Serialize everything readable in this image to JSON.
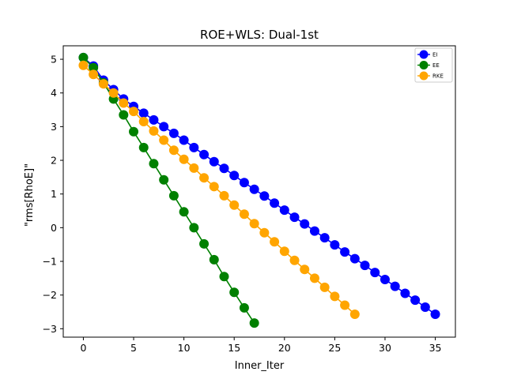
{
  "chart_data": {
    "type": "line",
    "title": "ROE+WLS: Dual-1st",
    "xlabel": "Inner_Iter",
    "ylabel": "\"rms[RhoE]\"",
    "xlim": [
      -2,
      37
    ],
    "ylim": [
      -3.25,
      5.4
    ],
    "xticks": [
      0,
      5,
      10,
      15,
      20,
      25,
      30,
      35
    ],
    "yticks": [
      -3,
      -2,
      -1,
      0,
      1,
      2,
      3,
      4,
      5
    ],
    "ytick_labels": [
      "−3",
      "−2",
      "−1",
      "0",
      "1",
      "2",
      "3",
      "4",
      "5"
    ],
    "grid": false,
    "legend_position": "top-right",
    "series": [
      {
        "name": "EI",
        "color": "#0000ff",
        "x": [
          0,
          1,
          2,
          3,
          4,
          5,
          6,
          7,
          8,
          9,
          10,
          11,
          12,
          13,
          14,
          15,
          16,
          17,
          18,
          19,
          20,
          21,
          22,
          23,
          24,
          25,
          26,
          27,
          28,
          29,
          30,
          31,
          32,
          33,
          34,
          35
        ],
        "y": [
          5.05,
          4.8,
          4.38,
          4.1,
          3.82,
          3.6,
          3.4,
          3.2,
          3.0,
          2.8,
          2.6,
          2.38,
          2.17,
          1.96,
          1.76,
          1.55,
          1.34,
          1.14,
          0.94,
          0.73,
          0.52,
          0.31,
          0.11,
          -0.1,
          -0.3,
          -0.51,
          -0.72,
          -0.92,
          -1.12,
          -1.33,
          -1.54,
          -1.74,
          -1.95,
          -2.15,
          -2.36,
          -2.57
        ]
      },
      {
        "name": "EE",
        "color": "#008000",
        "x": [
          0,
          1,
          2,
          3,
          4,
          5,
          6,
          7,
          8,
          9,
          10,
          11,
          12,
          13,
          14,
          15,
          16,
          17
        ],
        "y": [
          5.05,
          4.75,
          4.3,
          3.82,
          3.35,
          2.85,
          2.38,
          1.9,
          1.42,
          0.95,
          0.47,
          0.0,
          -0.48,
          -0.95,
          -1.45,
          -1.92,
          -2.38,
          -2.83
        ]
      },
      {
        "name": "RKE",
        "color": "#ffa500",
        "x": [
          0,
          1,
          2,
          3,
          4,
          5,
          6,
          7,
          8,
          9,
          10,
          11,
          12,
          13,
          14,
          15,
          16,
          17,
          18,
          19,
          20,
          21,
          22,
          23,
          24,
          25,
          26,
          27
        ],
        "y": [
          4.82,
          4.55,
          4.27,
          4.0,
          3.7,
          3.45,
          3.15,
          2.87,
          2.6,
          2.3,
          2.03,
          1.77,
          1.48,
          1.22,
          0.95,
          0.67,
          0.4,
          0.12,
          -0.15,
          -0.42,
          -0.7,
          -0.97,
          -1.24,
          -1.5,
          -1.77,
          -2.04,
          -2.3,
          -2.57
        ]
      }
    ]
  }
}
